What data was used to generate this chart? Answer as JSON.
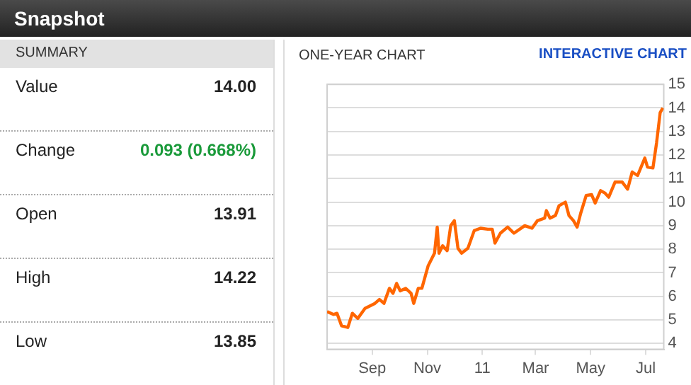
{
  "chart_data": [
    {
      "type": "other",
      "title": "Snapshot",
      "subtitle": "SUMMARY",
      "annotations": [
        "Value",
        "14.00",
        "Change",
        "0.093 (0.668%)",
        "Open",
        "13.91",
        "High",
        "14.22",
        "Low",
        "13.85"
      ]
    },
    {
      "type": "line",
      "title": "ONE-YEAR CHART",
      "annotations": [
        "INTERACTIVE CHART"
      ],
      "x": [
        "2010-07-13",
        "2010-07-20",
        "2010-07-24",
        "2010-07-29",
        "2010-08-05",
        "2010-08-10",
        "2010-08-16",
        "2010-08-24",
        "2010-09-04",
        "2010-09-09",
        "2010-09-14",
        "2010-09-20",
        "2010-09-24",
        "2010-09-28",
        "2010-10-02",
        "2010-10-08",
        "2010-10-14",
        "2010-10-17",
        "2010-10-22",
        "2010-10-26",
        "2010-11-02",
        "2010-11-09",
        "2010-11-12",
        "2010-11-14",
        "2010-11-18",
        "2010-11-23",
        "2010-11-27",
        "2010-12-01",
        "2010-12-05",
        "2010-12-09",
        "2010-12-16",
        "2010-12-23",
        "2010-12-30",
        "2011-01-07",
        "2011-01-12",
        "2011-01-15",
        "2011-01-21",
        "2011-01-29",
        "2011-02-05",
        "2011-02-17",
        "2011-02-25",
        "2011-03-03",
        "2011-03-11",
        "2011-03-13",
        "2011-03-17",
        "2011-03-23",
        "2011-03-27",
        "2011-04-03",
        "2011-04-07",
        "2011-04-12",
        "2011-04-16",
        "2011-04-20",
        "2011-04-26",
        "2011-05-02",
        "2011-05-06",
        "2011-05-12",
        "2011-05-17",
        "2011-05-21",
        "2011-05-28",
        "2011-06-05",
        "2011-06-11",
        "2011-06-16",
        "2011-06-22",
        "2011-06-30",
        "2011-07-03",
        "2011-07-09",
        "2011-07-13",
        "2011-07-15",
        "2011-07-17",
        "2011-07-20"
      ],
      "series": [
        {
          "color": "#ff6600",
          "values": [
            5.35,
            5.23,
            5.28,
            4.75,
            4.68,
            5.28,
            5.06,
            5.49,
            5.7,
            5.87,
            5.7,
            6.34,
            6.13,
            6.55,
            6.23,
            6.34,
            6.13,
            5.7,
            6.34,
            6.34,
            7.3,
            7.83,
            8.94,
            7.83,
            8.15,
            7.94,
            9.0,
            9.21,
            8.04,
            7.83,
            8.04,
            8.79,
            8.89,
            8.85,
            8.85,
            8.26,
            8.68,
            8.94,
            8.68,
            9.0,
            8.89,
            9.21,
            9.32,
            9.64,
            9.32,
            9.43,
            9.85,
            10.0,
            9.43,
            9.21,
            8.94,
            9.53,
            10.28,
            10.32,
            9.96,
            10.49,
            10.38,
            10.21,
            10.85,
            10.85,
            10.55,
            11.28,
            11.13,
            11.87,
            11.49,
            11.45,
            12.51,
            13.15,
            13.8,
            14.0
          ]
        }
      ],
      "xlim": [
        "2010-07-13",
        "2011-07-21"
      ],
      "xticks": [
        {
          "value": "2010-09-01",
          "label": "Sep"
        },
        {
          "value": "2010-11-01",
          "label": "Nov"
        },
        {
          "value": "2011-01-01",
          "label": "11"
        },
        {
          "value": "2011-03-01",
          "label": "Mar"
        },
        {
          "value": "2011-05-01",
          "label": "May"
        },
        {
          "value": "2011-07-01",
          "label": "Jul"
        }
      ],
      "ylim": [
        3.75,
        15
      ],
      "yticks": [
        4,
        5,
        6,
        7,
        8,
        9,
        10,
        11,
        12,
        13,
        14,
        15
      ],
      "grid": "y",
      "marker": "none",
      "line_style": "solid",
      "legend": false
    }
  ]
}
